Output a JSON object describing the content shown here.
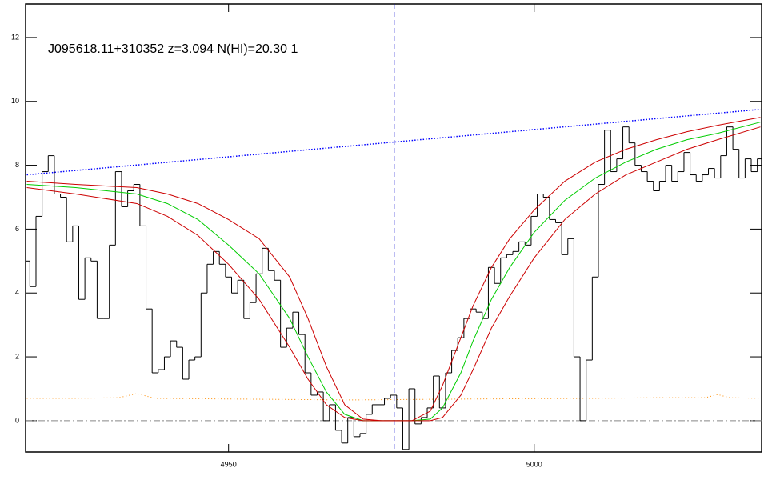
{
  "chart_data": {
    "type": "spectrum",
    "title": "J095618.11+310352 z=3.094 N(HI)=20.30 1",
    "xlim": [
      4916.8,
      5037.2
    ],
    "ylim": [
      -0.98,
      13.05
    ],
    "xticks": [
      4950,
      5000
    ],
    "yticks": [
      0,
      2,
      4,
      6,
      8,
      10,
      12
    ],
    "zero_line": 0,
    "vline": 4977.1,
    "flux": {
      "color": "#000000",
      "x": [
        4917,
        4918,
        4919,
        4920,
        4921,
        4922,
        4923,
        4924,
        4925,
        4926,
        4927,
        4928,
        4929,
        4930,
        4931,
        4932,
        4933,
        4934,
        4935,
        4936,
        4937,
        4938,
        4939,
        4940,
        4941,
        4942,
        4943,
        4944,
        4945,
        4946,
        4947,
        4948,
        4949,
        4950,
        4951,
        4952,
        4953,
        4954,
        4955,
        4956,
        4957,
        4958,
        4959,
        4960,
        4961,
        4962,
        4963,
        4964,
        4965,
        4966,
        4967,
        4968,
        4969,
        4970,
        4971,
        4972,
        4973,
        4974,
        4975,
        4976,
        4977,
        4978,
        4979,
        4980,
        4981,
        4982,
        4983,
        4984,
        4985,
        4986,
        4987,
        4988,
        4989,
        4990,
        4991,
        4992,
        4993,
        4994,
        4995,
        4996,
        4997,
        4998,
        4999,
        5000,
        5001,
        5002,
        5003,
        5004,
        5005,
        5006,
        5007,
        5008,
        5009,
        5010,
        5011,
        5012,
        5013,
        5014,
        5015,
        5016,
        5017,
        5018,
        5019,
        5020,
        5021,
        5022,
        5023,
        5024,
        5025,
        5026,
        5027,
        5028,
        5029,
        5030,
        5031,
        5032,
        5033,
        5034,
        5035,
        5036,
        5037
      ],
      "values": [
        5.0,
        4.2,
        6.4,
        7.8,
        8.3,
        7.1,
        7.0,
        5.6,
        6.1,
        3.8,
        5.1,
        5.0,
        3.2,
        3.2,
        5.5,
        7.8,
        6.7,
        7.2,
        7.4,
        6.1,
        3.5,
        1.5,
        1.6,
        2.0,
        2.5,
        2.3,
        1.3,
        1.9,
        2.0,
        4.0,
        4.9,
        5.3,
        4.9,
        4.5,
        4.0,
        4.4,
        3.2,
        3.7,
        4.6,
        5.4,
        4.7,
        4.4,
        2.3,
        2.9,
        3.4,
        2.7,
        1.5,
        0.8,
        0.9,
        0.0,
        0.5,
        -0.3,
        -0.7,
        0.1,
        -0.5,
        -0.4,
        0.2,
        0.5,
        0.5,
        0.7,
        0.8,
        0.4,
        -0.9,
        1.0,
        -0.1,
        0.1,
        0.4,
        1.4,
        0.4,
        1.5,
        2.2,
        2.6,
        3.2,
        3.5,
        3.4,
        3.2,
        4.8,
        4.3,
        5.1,
        5.2,
        5.3,
        5.6,
        5.5,
        6.4,
        7.1,
        7.0,
        6.3,
        6.2,
        5.2,
        5.7,
        2.0,
        0.0,
        1.9,
        4.5,
        7.4,
        9.1,
        7.8,
        8.2,
        9.2,
        8.7,
        8.0,
        7.8,
        7.5,
        7.2,
        7.5,
        8.0,
        7.5,
        7.8,
        8.4,
        7.7,
        7.5,
        7.7,
        7.9,
        7.6,
        8.3,
        9.2,
        8.5,
        7.6,
        8.2,
        7.8,
        8.2
      ]
    },
    "continuum": {
      "color": "#0000ff",
      "x": [
        4917,
        5037
      ],
      "values": [
        7.7,
        9.75
      ]
    },
    "error": {
      "color": "#ff8c00",
      "x": [
        4917,
        4925,
        4932,
        4935,
        4938,
        4950,
        4970,
        4990,
        5010,
        5020,
        5028,
        5030,
        5032,
        5037
      ],
      "values": [
        0.7,
        0.7,
        0.72,
        0.85,
        0.7,
        0.68,
        0.65,
        0.68,
        0.7,
        0.72,
        0.72,
        0.82,
        0.72,
        0.7
      ]
    },
    "fits": [
      {
        "color": "#00cc00",
        "x": [
          4917,
          4925,
          4935,
          4940,
          4945,
          4950,
          4955,
          4960,
          4963,
          4966,
          4969,
          4972,
          4975,
          4980,
          4983,
          4985,
          4988,
          4990,
          4993,
          4996,
          5000,
          5005,
          5010,
          5015,
          5020,
          5025,
          5030,
          5037
        ],
        "values": [
          7.4,
          7.3,
          7.1,
          6.8,
          6.3,
          5.5,
          4.6,
          3.2,
          2.0,
          0.9,
          0.2,
          0.0,
          0,
          0,
          0.05,
          0.4,
          1.5,
          2.5,
          3.8,
          4.8,
          5.9,
          6.9,
          7.6,
          8.1,
          8.5,
          8.8,
          9.0,
          9.35
        ]
      },
      {
        "color": "#cc0000",
        "x": [
          4917,
          4925,
          4935,
          4940,
          4945,
          4950,
          4955,
          4960,
          4963,
          4966,
          4969,
          4972,
          4975,
          4980,
          4983,
          4985,
          4988,
          4990,
          4993,
          4996,
          5000,
          5005,
          5010,
          5015,
          5020,
          5025,
          5030,
          5037
        ],
        "values": [
          7.5,
          7.4,
          7.3,
          7.1,
          6.8,
          6.3,
          5.7,
          4.5,
          3.2,
          1.7,
          0.5,
          0.05,
          0,
          0,
          0.3,
          1.1,
          2.6,
          3.6,
          4.8,
          5.7,
          6.6,
          7.5,
          8.1,
          8.5,
          8.8,
          9.05,
          9.25,
          9.5
        ]
      },
      {
        "color": "#cc0000",
        "x": [
          4917,
          4925,
          4935,
          4940,
          4945,
          4950,
          4955,
          4960,
          4963,
          4966,
          4969,
          4972,
          4975,
          4980,
          4983,
          4985,
          4988,
          4990,
          4993,
          4996,
          5000,
          5005,
          5010,
          5015,
          5020,
          5025,
          5030,
          5037
        ],
        "values": [
          7.3,
          7.1,
          6.8,
          6.4,
          5.8,
          4.9,
          3.8,
          2.3,
          1.3,
          0.5,
          0.1,
          0,
          0,
          0,
          0,
          0.1,
          0.8,
          1.6,
          2.9,
          3.9,
          5.1,
          6.3,
          7.1,
          7.7,
          8.1,
          8.5,
          8.8,
          9.2
        ]
      }
    ]
  }
}
